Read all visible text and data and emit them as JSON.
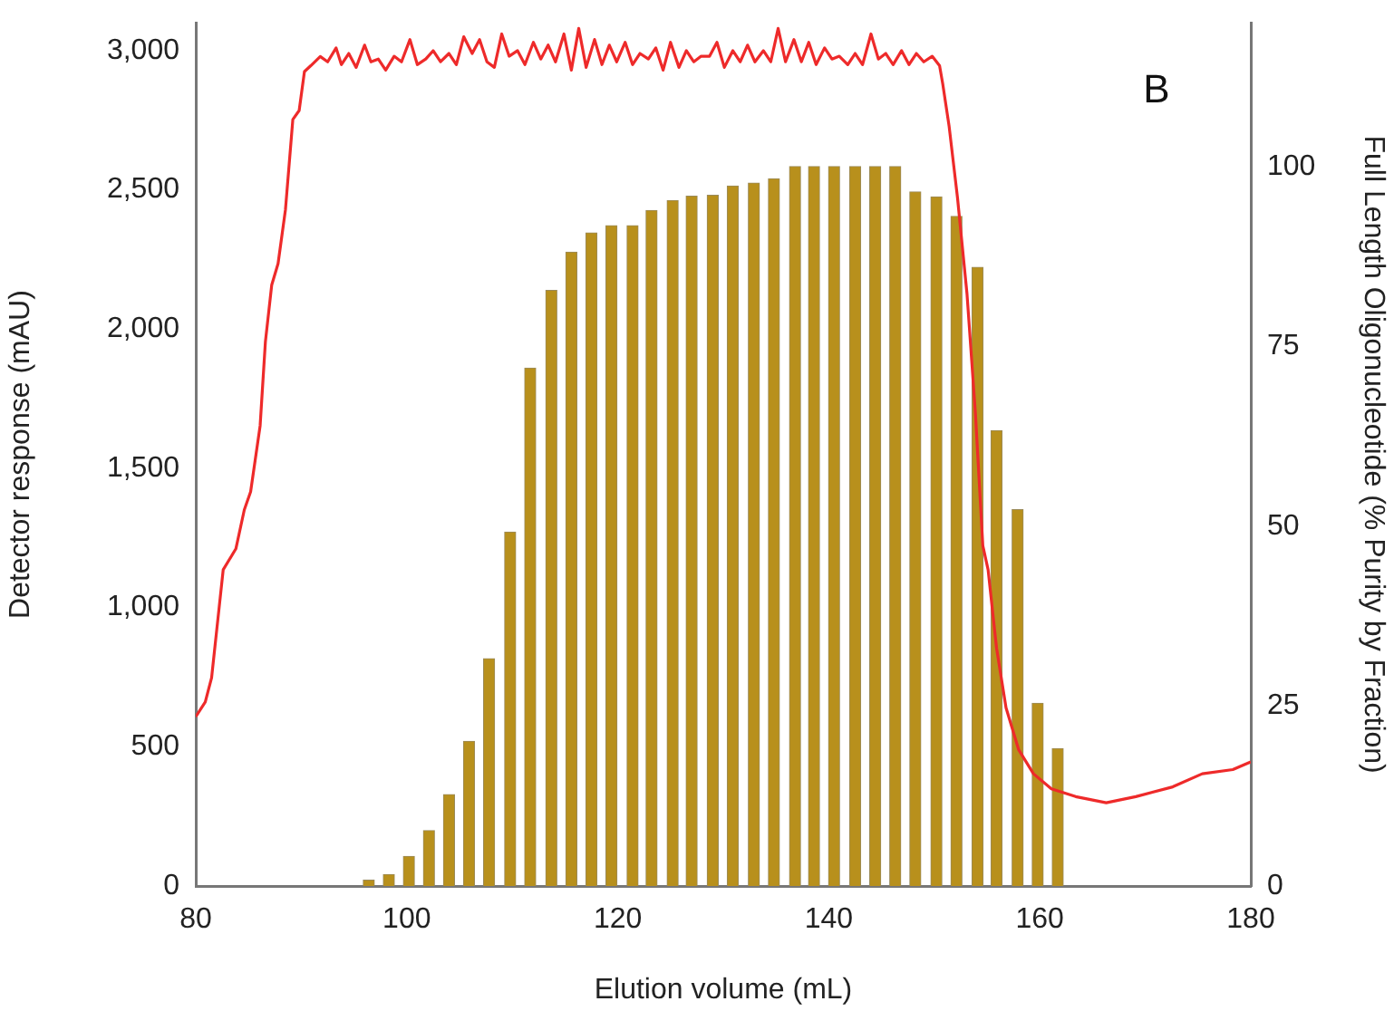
{
  "chart_data": {
    "type": "line",
    "xlabel": "Elution volume (mL)",
    "ylabel": "Detector response (mAU)",
    "y2label": "Full Length Oligonucleotide (% Purity by Fraction)",
    "annotations": [
      "B"
    ],
    "xlim": [
      80,
      180
    ],
    "xticks": [
      80,
      100,
      120,
      140,
      160,
      180
    ],
    "ylim": [
      0,
      3100
    ],
    "yticks": [
      0,
      500,
      {
        "value": 1000,
        "label": "1,000"
      },
      {
        "value": 1500,
        "label": "1,500"
      },
      {
        "value": 2000,
        "label": "2,000"
      },
      {
        "value": 2500,
        "label": "2,500"
      },
      {
        "value": 3000,
        "label": "3,000"
      }
    ],
    "y2lim": [
      0,
      120
    ],
    "y2ticks": [
      0,
      25,
      50,
      75,
      100
    ],
    "grid": false,
    "legend": false,
    "marker": "none",
    "line_style": "solid",
    "series": [
      {
        "color": "#ee2a2a",
        "x": [
          80,
          80.9,
          81.5,
          82.6,
          83.8,
          84.6,
          85.2,
          86.1,
          86.6,
          87.2,
          87.8,
          88.5,
          89.2,
          89.8,
          90.3,
          90.9,
          91.8,
          92.5,
          93.3,
          93.8,
          94.5,
          95.2,
          96,
          96.6,
          97.3,
          98,
          98.8,
          99.5,
          100.3,
          101,
          101.8,
          102.5,
          103.2,
          104,
          104.7,
          105.4,
          106.2,
          106.9,
          107.6,
          108.3,
          109,
          109.7,
          110.5,
          111.2,
          112,
          112.7,
          113.4,
          114.1,
          114.9,
          115.6,
          116.3,
          117,
          117.8,
          118.5,
          119.2,
          119.9,
          120.7,
          121.4,
          122.1,
          122.9,
          123.6,
          124.3,
          125,
          125.8,
          126.5,
          127.2,
          127.9,
          128.7,
          129.4,
          130.1,
          130.9,
          131.6,
          132.3,
          133,
          133.8,
          134.5,
          135.2,
          135.9,
          136.7,
          137.4,
          138.1,
          138.8,
          139.6,
          140.3,
          141,
          141.8,
          142.5,
          143.2,
          144,
          144.7,
          145.4,
          146.1,
          146.9,
          147.6,
          148.3,
          149,
          149.8,
          150.5,
          150.8,
          151.4,
          152.2,
          153.1,
          153.9,
          154.6,
          155.1,
          155.9,
          156.8,
          158,
          159.4,
          161.1,
          163.4,
          166.3,
          169.1,
          172.6,
          175.4,
          178.3,
          180
        ],
        "values": [
          608,
          661,
          748,
          1136,
          1211,
          1351,
          1416,
          1653,
          1955,
          2159,
          2235,
          2429,
          2753,
          2785,
          2925,
          2946,
          2979,
          2960,
          3010,
          2950,
          2990,
          2940,
          3020,
          2960,
          2970,
          2930,
          2980,
          2960,
          3040,
          2950,
          2970,
          3000,
          2960,
          2990,
          2950,
          3050,
          2990,
          3040,
          2960,
          2940,
          3060,
          2980,
          3000,
          2950,
          3030,
          2970,
          3020,
          2960,
          3060,
          2930,
          3080,
          2940,
          3040,
          2950,
          3020,
          2960,
          3030,
          2950,
          2990,
          2970,
          3010,
          2930,
          3030,
          2940,
          3000,
          2960,
          2980,
          2980,
          3030,
          2940,
          3000,
          2960,
          3020,
          2960,
          3000,
          2960,
          3080,
          2960,
          3040,
          2960,
          3030,
          2950,
          3010,
          2970,
          2980,
          2950,
          2990,
          2950,
          3060,
          2970,
          2990,
          2950,
          3000,
          2950,
          2990,
          2960,
          2980,
          2946,
          2881,
          2730,
          2472,
          2127,
          1696,
          1222,
          1136,
          855,
          640,
          489,
          403,
          349,
          321,
          299,
          321,
          356,
          403,
          418,
          446
        ]
      },
      {
        "type": "bar",
        "axis": "y2",
        "color": "#b8901c",
        "x": [
          96.4,
          98.3,
          100.2,
          102.1,
          104,
          105.9,
          107.8,
          109.8,
          111.7,
          113.7,
          115.6,
          117.5,
          119.4,
          121.4,
          123.2,
          125.2,
          127,
          129,
          130.9,
          132.9,
          134.8,
          136.8,
          138.6,
          140.5,
          142.5,
          144.4,
          146.3,
          148.2,
          150.2,
          152.1,
          154.1,
          155.9,
          157.9,
          159.8,
          161.7
        ],
        "values": [
          0.8,
          1.6,
          4.1,
          7.7,
          12.7,
          20.1,
          31.6,
          49.2,
          72,
          82.8,
          88.1,
          90.8,
          91.8,
          91.8,
          93.9,
          95.3,
          95.9,
          96,
          97.3,
          97.7,
          98.3,
          100,
          100,
          100,
          100,
          100,
          100,
          96.5,
          95.8,
          93.1,
          86,
          63.3,
          52.3,
          25.4,
          19.1
        ]
      }
    ]
  }
}
